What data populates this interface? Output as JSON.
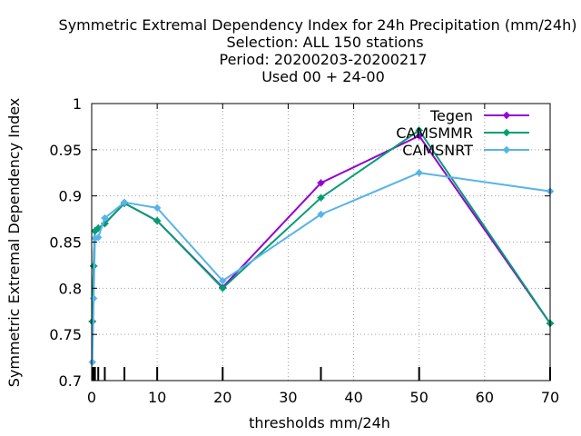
{
  "chart_data": {
    "type": "line",
    "title_lines": [
      "Symmetric Extremal Dependency Index  for 24h Precipitation (mm/24h)",
      "Selection: ALL    150 stations",
      "Period: 20200203-20200217",
      "Used  00 + 24-00"
    ],
    "xlabel": "thresholds mm/24h",
    "ylabel": "Symmetric Extremal Dependency Index",
    "xlim": [
      0,
      70
    ],
    "ylim": [
      0.7,
      1.0
    ],
    "xticks": [
      0,
      10,
      20,
      30,
      40,
      50,
      60,
      70
    ],
    "yticks": [
      0.7,
      0.75,
      0.8,
      0.85,
      0.9,
      0.95,
      1
    ],
    "ytick_labels": [
      "0.7",
      "0.75",
      "0.8",
      "0.85",
      "0.9",
      "0.95",
      "1"
    ],
    "grid": true,
    "legend_position": "top-right",
    "threshold_marks": [
      0.1,
      0.3,
      0.5,
      1,
      2,
      5,
      10,
      20,
      35,
      50,
      70
    ],
    "series": [
      {
        "name": "Tegen",
        "color": "#9400d3",
        "marker": "plus-circle",
        "x": [
          0.1,
          0.3,
          0.5,
          1,
          2,
          5,
          10,
          20,
          35,
          50,
          70
        ],
        "y": [
          0.764,
          0.824,
          0.862,
          0.865,
          0.87,
          0.892,
          0.873,
          0.801,
          0.914,
          0.965,
          0.762
        ]
      },
      {
        "name": "CAMSMMR",
        "color": "#009e73",
        "marker": "plus-circle",
        "x": [
          0.1,
          0.3,
          0.5,
          1,
          2,
          5,
          10,
          20,
          35,
          50,
          70
        ],
        "y": [
          0.764,
          0.824,
          0.862,
          0.865,
          0.87,
          0.892,
          0.873,
          0.8,
          0.898,
          0.971,
          0.762
        ]
      },
      {
        "name": "CAMSNRT",
        "color": "#56b4e9",
        "marker": "plus-circle",
        "x": [
          0.1,
          0.3,
          0.5,
          1,
          2,
          5,
          10,
          20,
          35,
          50,
          70
        ],
        "y": [
          0.72,
          0.789,
          0.854,
          0.855,
          0.876,
          0.893,
          0.887,
          0.808,
          0.88,
          0.925,
          0.905
        ]
      }
    ]
  }
}
